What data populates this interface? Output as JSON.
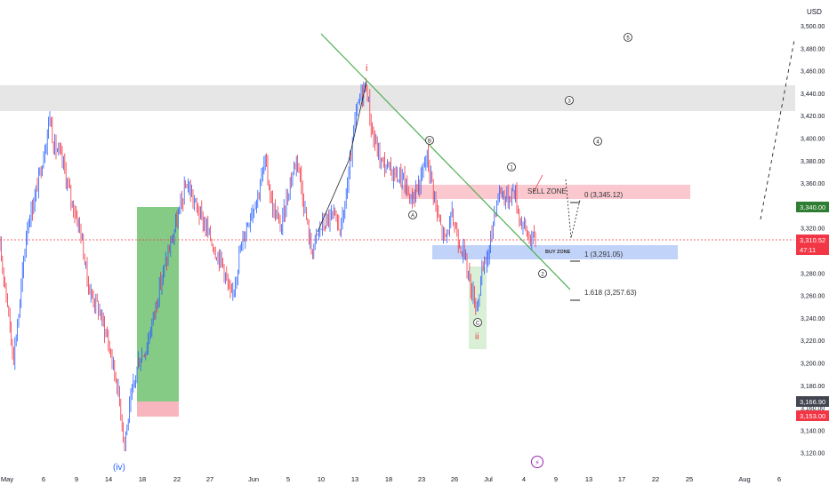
{
  "price_axis": {
    "currency": "USD",
    "ticks": [
      "3,500.00",
      "3,480.00",
      "3,460.00",
      "3,440.00",
      "3,420.00",
      "3,400.00",
      "3,380.00",
      "3,360.00",
      "3,340.00",
      "3,320.00",
      "3,300.00",
      "3,280.00",
      "3,260.00",
      "3,240.00",
      "3,220.00",
      "3,200.00",
      "3,180.00",
      "3,160.00",
      "3,140.00",
      "3,120.00"
    ],
    "badges": [
      {
        "text": "3,340.00",
        "color": "#2e7d32"
      },
      {
        "text": "3,310.52",
        "color": "#f23645"
      },
      {
        "text": "47:11",
        "color": "#f23645"
      },
      {
        "text": "3,166.90",
        "color": "#434651"
      },
      {
        "text": "3,153.00",
        "color": "#f23645"
      }
    ]
  },
  "time_axis": {
    "ticks": [
      "May",
      "6",
      "9",
      "14",
      "18",
      "22",
      "27",
      "Jun",
      "5",
      "10",
      "13",
      "18",
      "23",
      "26",
      "Jul",
      "4",
      "9",
      "13",
      "17",
      "22",
      "25",
      "Aug",
      "6"
    ]
  },
  "annotations": {
    "sell_zone": "SELL ZONE",
    "buy_zone": "BUY ZONE",
    "fib_0": "0 (3,345.12)",
    "fib_1": "1 (3,291.05)",
    "fib_1618": "1.618 (3,257.63)",
    "wave_iv": "(iv)",
    "wave_i": "i",
    "wave_ii": "ii",
    "circle_A": "A",
    "circle_B": "B",
    "circle_C": "C",
    "circle_1": "1",
    "circle_2": "2",
    "circle_3": "3",
    "circle_4": "4",
    "circle_5": "5",
    "lightning_icon": "⚡"
  },
  "colors": {
    "up": "#2962ff",
    "down": "#f23645",
    "trendline": "#4caf50",
    "sell_zone": "#f8c8cf",
    "buy_zone": "#c5d5fb",
    "grey_zone": "#e6e6e6",
    "green_box": "#5cb85c",
    "last_price_line": "#f23645"
  },
  "chart_data": {
    "type": "candlestick",
    "symbol_currency": "USD",
    "ylim": [
      3110,
      3510
    ],
    "current_price": 3310.52,
    "countdown": "47:11",
    "levels": {
      "fib_0": 3345.12,
      "fib_1": 3291.05,
      "fib_1618": 3257.63,
      "green_label": 3340.0,
      "grey_label": 3166.9,
      "red_label": 3153.0
    },
    "zones": {
      "sell_zone": [
        3348,
        3358
      ],
      "buy_zone": [
        3286,
        3300
      ],
      "resistance": [
        3425,
        3449
      ]
    },
    "key_points": [
      {
        "label": "(iv)",
        "date": "May 15",
        "price": 3121
      },
      {
        "label": "i",
        "date": "Jun 13",
        "price": 3452
      },
      {
        "label": "A",
        "date": "Jun 23",
        "price": 3345
      },
      {
        "label": "B",
        "date": "Jun 23",
        "price": 3398
      },
      {
        "label": "C",
        "date": "Jun 30",
        "price": 3248
      },
      {
        "label": "1",
        "date": "Jul 3",
        "price": 3365
      },
      {
        "label": "2",
        "date": "Jul 7",
        "price": 3285
      }
    ]
  }
}
